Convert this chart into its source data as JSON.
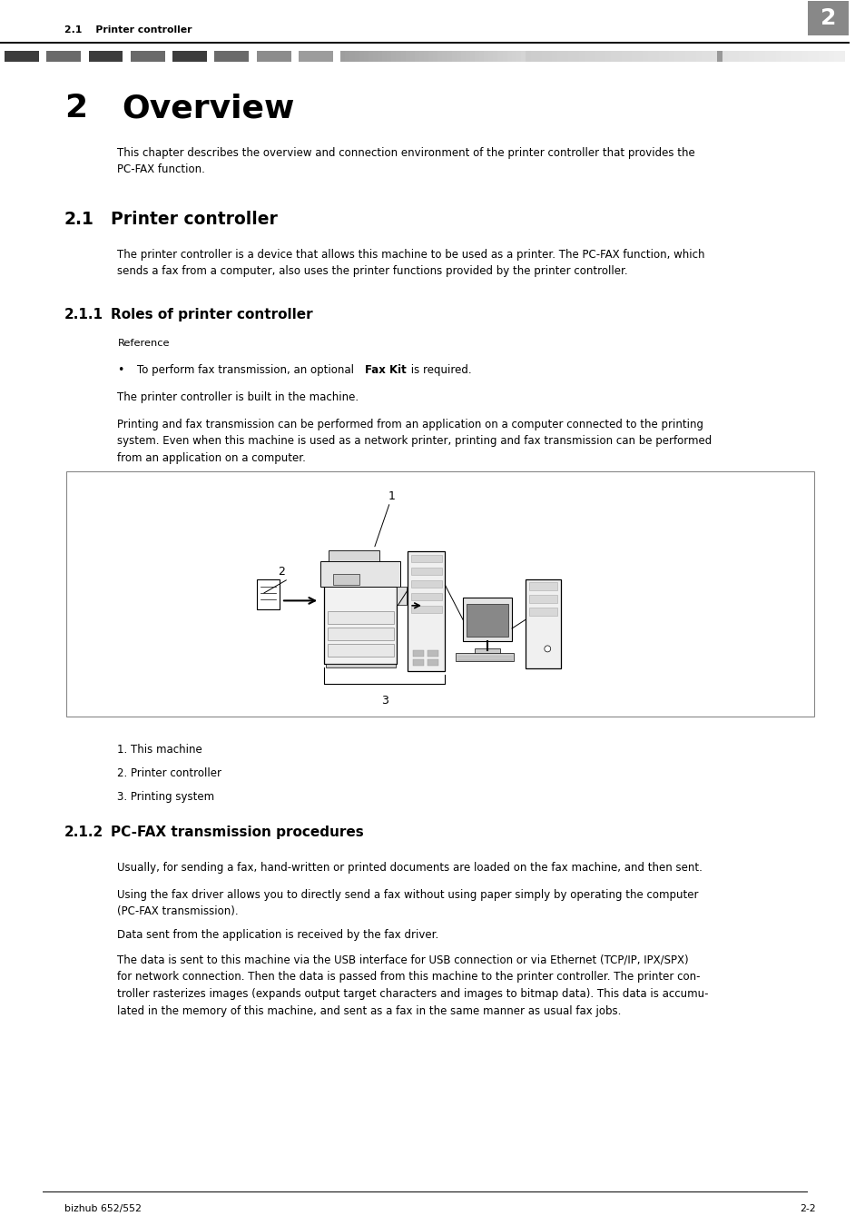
{
  "page_width": 9.54,
  "page_height": 13.5,
  "bg_color": "#ffffff",
  "header_text_left": "2.1    Printer controller",
  "header_number": "2",
  "footer_left": "bizhub 652/552",
  "footer_right": "2-2",
  "chapter_number": "2",
  "chapter_title": "Overview",
  "chapter_intro": "This chapter describes the overview and connection environment of the printer controller that provides the\nPC-FAX function.",
  "section_21_title": "2.1",
  "section_21_title2": "Printer controller",
  "section_21_body": "The printer controller is a device that allows this machine to be used as a printer. The PC-FAX function, which\nsends a fax from a computer, also uses the printer functions provided by the printer controller.",
  "section_211_title": "2.1.1",
  "section_211_title2": "Roles of printer controller",
  "reference_label": "Reference",
  "bullet_text": "To perform fax transmission, an optional ",
  "bullet_bold": "Fax Kit",
  "bullet_end": " is required.",
  "built_in_text": "The printer controller is built in the machine.",
  "printing_fax_text": "Printing and fax transmission can be performed from an application on a computer connected to the printing\nsystem. Even when this machine is used as a network printer, printing and fax transmission can be performed\nfrom an application on a computer.",
  "section_212_title": "2.1.2",
  "section_212_title2": "PC-FAX transmission procedures",
  "section_212_body1": "Usually, for sending a fax, hand-written or printed documents are loaded on the fax machine, and then sent.",
  "section_212_body2": "Using the fax driver allows you to directly send a fax without using paper simply by operating the computer\n(PC-FAX transmission).",
  "section_212_body3": "Data sent from the application is received by the fax driver.",
  "section_212_body4": "The data is sent to this machine via the USB interface for USB connection or via Ethernet (TCP/IP, IPX/SPX)\nfor network connection. Then the data is passed from this machine to the printer controller. The printer con-\ntroller rasterizes images (expands output target characters and images to bitmap data). This data is accumu-\nlated in the memory of this machine, and sent as a fax in the same manner as usual fax jobs.",
  "caption1": "1. This machine",
  "caption2": "2. Printer controller",
  "caption3": "3. Printing system",
  "label1": "1",
  "label2": "2",
  "label3": "3",
  "bar_colors_dark": [
    "#3a3a3a",
    "#5a5a5a",
    "#3a3a3a",
    "#5a5a5a",
    "#3a3a3a",
    "#5a5a5a",
    "#7a7a7a",
    "#9a9a9a"
  ],
  "bar_colors_mid": [
    "#aaaaaa",
    "#b8b8b8",
    "#c4c4c4"
  ],
  "bar_colors_light": [
    "#cccccc",
    "#d4d4d4",
    "#dadada",
    "#e0e0e0",
    "#e6e6e6",
    "#eaeaea"
  ]
}
